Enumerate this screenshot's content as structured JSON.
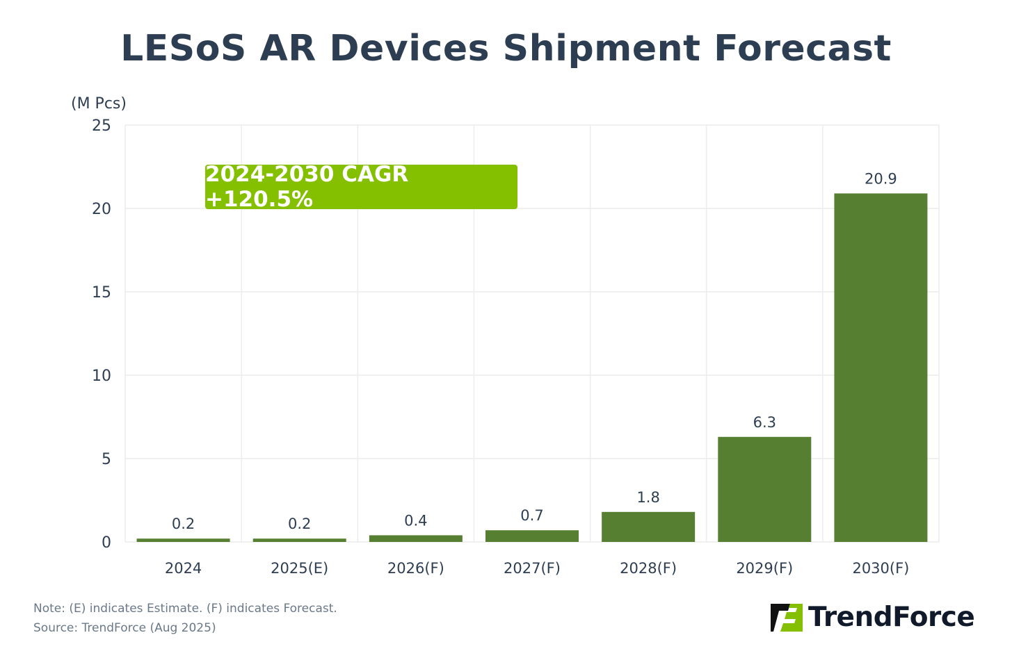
{
  "chart_data": {
    "type": "bar",
    "title": "LESoS AR Devices Shipment Forecast",
    "ylabel": "(M Pcs)",
    "xlabel": "",
    "categories": [
      "2024",
      "2025(E)",
      "2026(F)",
      "2027(F)",
      "2028(F)",
      "2029(F)",
      "2030(F)"
    ],
    "values": [
      0.2,
      0.2,
      0.4,
      0.7,
      1.8,
      6.3,
      20.9
    ],
    "data_labels": [
      "0.2",
      "0.2",
      "0.4",
      "0.7",
      "1.8",
      "6.3",
      "20.9"
    ],
    "ylim": [
      0,
      25
    ],
    "yticks": [
      0,
      5,
      10,
      15,
      20,
      25
    ],
    "grid": true,
    "bar_color": "#567f32",
    "annotation": "2024-2030 CAGR +120.5%",
    "annotation_color": "#84c000"
  },
  "footer": {
    "note": "Note: (E) indicates Estimate. (F) indicates Forecast.",
    "source": "Source: TrendForce (Aug 2025)"
  },
  "logo": {
    "text": "TrendForce",
    "colors": [
      "#111111",
      "#84c000"
    ]
  }
}
